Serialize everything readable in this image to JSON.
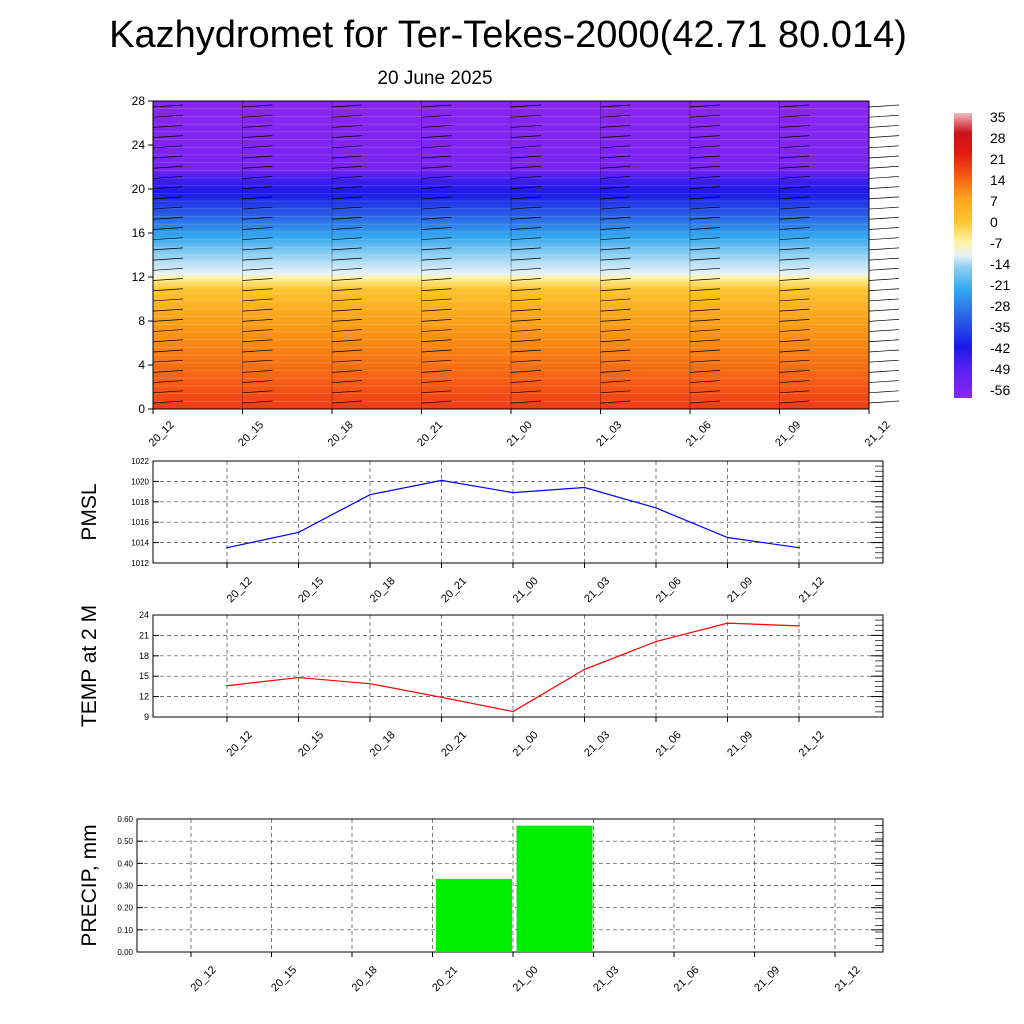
{
  "title": "Kazhydromet for Ter-Tekes-2000(42.71 80.014)",
  "subtitle": "20 June 2025",
  "chart_data": [
    {
      "type": "heatmap",
      "title": "",
      "ylim": [
        0,
        28
      ],
      "y_ticks": [
        "0",
        "4",
        "8",
        "12",
        "16",
        "20",
        "24",
        "28"
      ],
      "x_ticks": [
        "20_12",
        "20_15",
        "20_18",
        "20_21",
        "21_00",
        "21_03",
        "21_06",
        "21_09",
        "21_12"
      ],
      "colorbar_labels": [
        "35",
        "28",
        "21",
        "14",
        "7",
        "0",
        "-7",
        "-14",
        "-21",
        "-28",
        "-35",
        "-42",
        "-49",
        "-56"
      ],
      "description_values": {
        "levels": [
          0,
          2,
          4,
          6,
          8,
          10,
          11.5,
          12.5,
          14,
          16,
          18,
          20,
          22,
          28
        ],
        "temperature": [
          22,
          16,
          12,
          6,
          2,
          -3,
          -9,
          -14,
          -20,
          -30,
          -42,
          -56,
          -58,
          -60
        ]
      }
    },
    {
      "type": "line",
      "ylabel": "PMSL",
      "ylim": [
        1012,
        1022
      ],
      "y_ticks": [
        "1012",
        "1014",
        "1016",
        "1018",
        "1020",
        "1022"
      ],
      "categories": [
        "20_12",
        "20_15",
        "20_18",
        "20_21",
        "21_00",
        "21_03",
        "21_06",
        "21_09",
        "21_12"
      ],
      "values": [
        1013.5,
        1015.0,
        1018.7,
        1020.1,
        1018.9,
        1019.4,
        1017.4,
        1014.5,
        1013.5
      ],
      "color": "#0000ff"
    },
    {
      "type": "line",
      "ylabel": "TEMP at 2 M",
      "ylim": [
        9,
        24
      ],
      "y_ticks": [
        "9",
        "12",
        "15",
        "18",
        "21",
        "24"
      ],
      "categories": [
        "20_12",
        "20_15",
        "20_18",
        "20_21",
        "21_00",
        "21_03",
        "21_06",
        "21_09",
        "21_12"
      ],
      "values": [
        13.6,
        14.8,
        13.9,
        11.9,
        9.8,
        16.0,
        20.1,
        22.8,
        22.4
      ],
      "color": "#ff0000"
    },
    {
      "type": "bar",
      "ylabel": "PRECIP, mm",
      "ylim": [
        0,
        0.6
      ],
      "y_ticks": [
        "0.00",
        "0.10",
        "0.20",
        "0.30",
        "0.40",
        "0.50",
        "0.60"
      ],
      "categories": [
        "20_12",
        "20_15",
        "20_18",
        "20_21",
        "21_00",
        "21_03",
        "21_06",
        "21_09",
        "21_12"
      ],
      "values": [
        0,
        0,
        0.33,
        0.57,
        0,
        0,
        0,
        0,
        0
      ],
      "color": "#00ee00"
    }
  ]
}
